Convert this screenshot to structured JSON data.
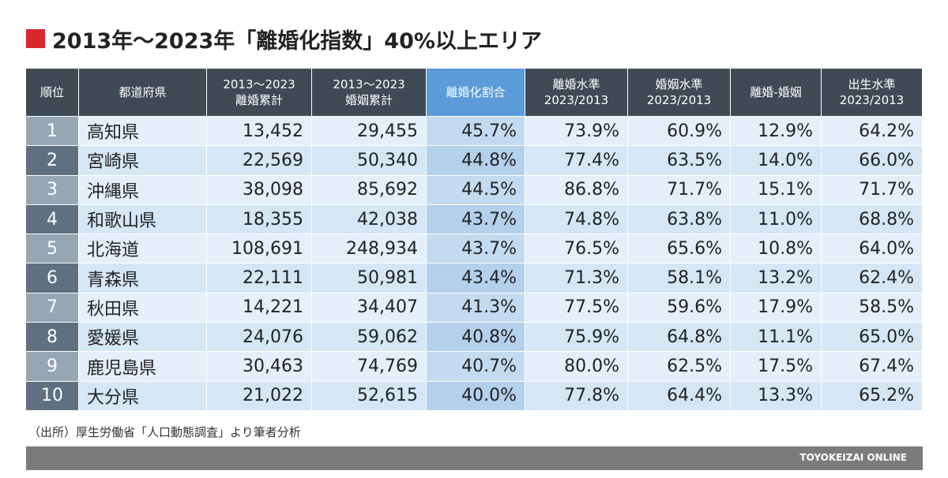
{
  "title": "2013年〜2023年「離婚化指数」40%以上エリア",
  "table": {
    "headers": [
      [
        "順位"
      ],
      [
        "都道府県"
      ],
      [
        "2013〜2023",
        "離婚累計"
      ],
      [
        "2013〜2023",
        "婚姻累計"
      ],
      [
        "離婚化割合"
      ],
      [
        "離婚水準",
        "2023/2013"
      ],
      [
        "婚姻水準",
        "2023/2013"
      ],
      [
        "離婚-婚姻"
      ],
      [
        "出生水準",
        "2023/2013"
      ]
    ],
    "rows": [
      [
        "1",
        "高知県",
        "13,452",
        "29,455",
        "45.7%",
        "73.9%",
        "60.9%",
        "12.9%",
        "64.2%"
      ],
      [
        "2",
        "宮崎県",
        "22,569",
        "50,340",
        "44.8%",
        "77.4%",
        "63.5%",
        "14.0%",
        "66.0%"
      ],
      [
        "3",
        "沖縄県",
        "38,098",
        "85,692",
        "44.5%",
        "86.8%",
        "71.7%",
        "15.1%",
        "71.7%"
      ],
      [
        "4",
        "和歌山県",
        "18,355",
        "42,038",
        "43.7%",
        "74.8%",
        "63.8%",
        "11.0%",
        "68.8%"
      ],
      [
        "5",
        "北海道",
        "108,691",
        "248,934",
        "43.7%",
        "76.5%",
        "65.6%",
        "10.8%",
        "64.0%"
      ],
      [
        "6",
        "青森県",
        "22,111",
        "50,981",
        "43.4%",
        "71.3%",
        "58.1%",
        "13.2%",
        "62.4%"
      ],
      [
        "7",
        "秋田県",
        "14,221",
        "34,407",
        "41.3%",
        "77.5%",
        "59.6%",
        "17.9%",
        "58.5%"
      ],
      [
        "8",
        "愛媛県",
        "24,076",
        "59,062",
        "40.8%",
        "75.9%",
        "64.8%",
        "11.1%",
        "65.0%"
      ],
      [
        "9",
        "鹿児島県",
        "30,463",
        "74,769",
        "40.7%",
        "80.0%",
        "62.5%",
        "17.5%",
        "67.4%"
      ],
      [
        "10",
        "大分県",
        "21,022",
        "52,615",
        "40.0%",
        "77.8%",
        "64.4%",
        "13.3%",
        "65.2%"
      ]
    ]
  },
  "source": "（出所）厚生労働省「人口動態調査」より筆者分析",
  "footer": "TOYOKEIZAI ONLINE"
}
